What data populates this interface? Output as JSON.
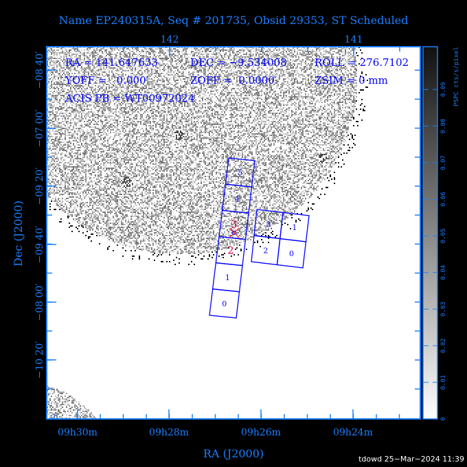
{
  "title": "Name EP240315A, Seq # 201735, Obsid 29353, ST Scheduled",
  "info": {
    "line1": [
      "RA = 141.647633",
      "DEC = −9.534008",
      "ROLL = 276.7102"
    ],
    "line2": [
      "YOFF =   0.000′",
      "ZOFF =  0.0000′",
      "ZSIM = 0 mm"
    ],
    "line3": [
      "ACIS PB = WT00972024"
    ]
  },
  "footer": "tdowd 25−Mar−2024 11:39",
  "colors": {
    "axis": "#1a7fff",
    "chips": "#0000ff",
    "aimpoint": "#e0005a",
    "background": "#000000"
  },
  "chart_data": {
    "type": "heatmap",
    "title": "Name EP240315A, Seq # 201735, Obsid 29353, ST Scheduled",
    "xlabel": "RA (J2000)",
    "ylabel": "Dec (J2000)",
    "x_ticks_bottom": [
      "09h30m",
      "09h28m",
      "09h26m",
      "09h24m"
    ],
    "x_ticks_top": [
      "142",
      "141"
    ],
    "y_ticks": [
      "−08 40′",
      "−07 00′",
      "−09 20′",
      "−09 40′",
      "−08 00′",
      "−10 20′"
    ],
    "colorbar": {
      "label": "PSPC cts/s/pixel",
      "range": [
        0,
        0.1
      ],
      "ticks": [
        "0",
        "0.01",
        "0.02",
        "0.03",
        "0.04",
        "0.05",
        "0.06",
        "0.07",
        "0.08",
        "0.09"
      ],
      "colormap": "white-to-black"
    },
    "chips": {
      "acis_s": [
        "0",
        "1",
        "2",
        "3",
        "4",
        "5"
      ],
      "acis_i": [
        "3",
        "1",
        "2",
        "0"
      ]
    }
  }
}
